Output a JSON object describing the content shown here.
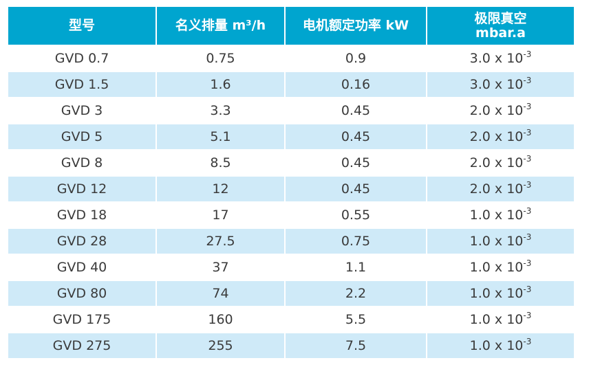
{
  "colors": {
    "header_bg": "#00a5cf",
    "header_text": "#ffffff",
    "row_alt_bg": "#cfeaf8",
    "row_bg": "#ffffff",
    "cell_text": "#3a3a3a"
  },
  "table": {
    "headers": {
      "model": "型号",
      "displacement": "名义排量 m³/h",
      "motor_power": "电机额定功率 kW",
      "ultimate_vacuum_line1": "极限真空",
      "ultimate_vacuum_line2": "mbar.a"
    },
    "rows": [
      {
        "model": "GVD 0.7",
        "displacement": "0.75",
        "power": "0.9",
        "vacuum_base": "3.0 x 10",
        "vacuum_exp": "-3"
      },
      {
        "model": "GVD 1.5",
        "displacement": "1.6",
        "power": "0.16",
        "vacuum_base": "3.0 x 10",
        "vacuum_exp": "-3"
      },
      {
        "model": "GVD 3",
        "displacement": "3.3",
        "power": "0.45",
        "vacuum_base": "2.0 x 10",
        "vacuum_exp": "-3"
      },
      {
        "model": "GVD 5",
        "displacement": "5.1",
        "power": "0.45",
        "vacuum_base": "2.0 x 10",
        "vacuum_exp": "-3"
      },
      {
        "model": "GVD 8",
        "displacement": "8.5",
        "power": "0.45",
        "vacuum_base": "2.0 x 10",
        "vacuum_exp": "-3"
      },
      {
        "model": "GVD 12",
        "displacement": "12",
        "power": "0.45",
        "vacuum_base": "2.0 x 10",
        "vacuum_exp": "-3"
      },
      {
        "model": "GVD 18",
        "displacement": "17",
        "power": "0.55",
        "vacuum_base": "1.0 x 10",
        "vacuum_exp": "-3"
      },
      {
        "model": "GVD 28",
        "displacement": "27.5",
        "power": "0.75",
        "vacuum_base": "1.0 x 10",
        "vacuum_exp": "-3"
      },
      {
        "model": "GVD 40",
        "displacement": "37",
        "power": "1.1",
        "vacuum_base": "1.0 x 10",
        "vacuum_exp": "-3"
      },
      {
        "model": "GVD 80",
        "displacement": "74",
        "power": "2.2",
        "vacuum_base": "1.0 x 10",
        "vacuum_exp": "-3"
      },
      {
        "model": "GVD 175",
        "displacement": "160",
        "power": "5.5",
        "vacuum_base": "1.0 x 10",
        "vacuum_exp": "-3"
      },
      {
        "model": "GVD 275",
        "displacement": "255",
        "power": "7.5",
        "vacuum_base": "1.0 x 10",
        "vacuum_exp": "-3"
      }
    ]
  }
}
